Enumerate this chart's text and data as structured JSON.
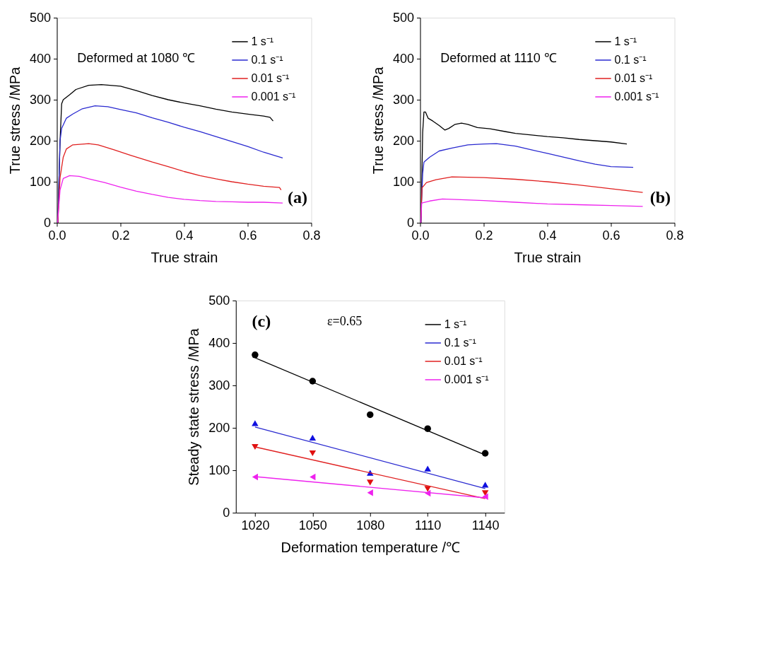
{
  "chart_data": [
    {
      "type": "line",
      "xlabel": "True strain",
      "ylabel": "True stress /MPa",
      "xlim": [
        0,
        0.8
      ],
      "ylim": [
        0,
        500
      ],
      "xticks": [
        {
          "value": 0,
          "label": "0.0"
        },
        0.2,
        0.4,
        0.6,
        0.8
      ],
      "yticks": [
        0,
        100,
        200,
        300,
        400,
        500
      ],
      "grid": false,
      "legend": "top right",
      "annotations": [
        "Deformed at 1080 ℃",
        "(a)"
      ],
      "series": [
        {
          "name": "1 s⁻¹",
          "color": "#000000",
          "x": [
            0.003,
            0.01,
            0.015,
            0.02,
            0.04,
            0.06,
            0.1,
            0.14,
            0.2,
            0.25,
            0.3,
            0.35,
            0.4,
            0.45,
            0.5,
            0.55,
            0.6,
            0.65,
            0.67,
            0.68
          ],
          "values": [
            0,
            200,
            290,
            300,
            312,
            325,
            335,
            337,
            333,
            322,
            310,
            300,
            292,
            285,
            277,
            270,
            265,
            260,
            257,
            248
          ]
        },
        {
          "name": "0.1 s⁻¹",
          "color": "#2a2ad0",
          "x": [
            0.003,
            0.01,
            0.015,
            0.03,
            0.05,
            0.08,
            0.12,
            0.16,
            0.2,
            0.25,
            0.3,
            0.35,
            0.4,
            0.45,
            0.5,
            0.55,
            0.6,
            0.65,
            0.71
          ],
          "values": [
            0,
            200,
            230,
            255,
            265,
            278,
            285,
            283,
            276,
            268,
            256,
            245,
            233,
            222,
            210,
            198,
            186,
            172,
            158
          ]
        },
        {
          "name": "0.01 s⁻¹",
          "color": "#e02020",
          "x": [
            0.003,
            0.01,
            0.02,
            0.03,
            0.05,
            0.1,
            0.13,
            0.18,
            0.23,
            0.3,
            0.35,
            0.4,
            0.45,
            0.5,
            0.55,
            0.6,
            0.65,
            0.7,
            0.705
          ],
          "values": [
            0,
            110,
            160,
            180,
            190,
            193,
            190,
            178,
            165,
            148,
            137,
            125,
            115,
            107,
            100,
            94,
            89,
            86,
            80
          ]
        },
        {
          "name": "0.001 s⁻¹",
          "color": "#ee22ee",
          "x": [
            0.002,
            0.01,
            0.02,
            0.04,
            0.07,
            0.1,
            0.15,
            0.2,
            0.25,
            0.3,
            0.35,
            0.4,
            0.45,
            0.5,
            0.55,
            0.6,
            0.65,
            0.71
          ],
          "values": [
            0,
            80,
            108,
            115,
            113,
            107,
            98,
            87,
            77,
            69,
            62,
            57,
            54,
            52,
            51,
            50,
            50,
            48
          ]
        }
      ]
    },
    {
      "type": "line",
      "xlabel": "True strain",
      "ylabel": "True stress /MPa",
      "xlim": [
        0,
        0.8
      ],
      "ylim": [
        0,
        500
      ],
      "xticks": [
        {
          "value": 0,
          "label": "0.0"
        },
        0.2,
        0.4,
        0.6,
        0.8
      ],
      "yticks": [
        0,
        100,
        200,
        300,
        400,
        500
      ],
      "grid": false,
      "legend": "top right",
      "annotations": [
        "Deformed at 1110 ℃",
        "(b)"
      ],
      "series": [
        {
          "name": "1 s⁻¹",
          "color": "#000000",
          "x": [
            0.003,
            0.008,
            0.012,
            0.017,
            0.025,
            0.04,
            0.06,
            0.078,
            0.09,
            0.11,
            0.13,
            0.15,
            0.18,
            0.22,
            0.27,
            0.3,
            0.35,
            0.4,
            0.45,
            0.5,
            0.55,
            0.6,
            0.65
          ],
          "values": [
            0,
            220,
            270,
            270,
            255,
            248,
            237,
            226,
            230,
            240,
            243,
            240,
            232,
            229,
            222,
            218,
            214,
            210,
            207,
            203,
            200,
            197,
            192
          ]
        },
        {
          "name": "0.1 s⁻¹",
          "color": "#2a2ad0",
          "x": [
            0.002,
            0.008,
            0.012,
            0.03,
            0.06,
            0.1,
            0.15,
            0.2,
            0.24,
            0.3,
            0.35,
            0.4,
            0.45,
            0.5,
            0.55,
            0.6,
            0.67
          ],
          "values": [
            0,
            120,
            148,
            160,
            175,
            182,
            190,
            192,
            193,
            187,
            178,
            169,
            160,
            151,
            143,
            137,
            135
          ]
        },
        {
          "name": "0.01 s⁻¹",
          "color": "#e02020",
          "x": [
            0.002,
            0.006,
            0.02,
            0.05,
            0.1,
            0.15,
            0.2,
            0.3,
            0.4,
            0.5,
            0.6,
            0.7
          ],
          "values": [
            0,
            85,
            98,
            105,
            112,
            111,
            110,
            106,
            100,
            92,
            83,
            74
          ]
        },
        {
          "name": "0.001 s⁻¹",
          "color": "#ee22ee",
          "x": [
            0.002,
            0.005,
            0.03,
            0.07,
            0.1,
            0.2,
            0.3,
            0.4,
            0.5,
            0.6,
            0.7
          ],
          "values": [
            0,
            48,
            53,
            58,
            57,
            54,
            50,
            46,
            44,
            42,
            40
          ]
        }
      ]
    },
    {
      "type": "line",
      "xlabel": "Deformation temperature /℃",
      "ylabel": "Steady state stress /MPa",
      "xlim": [
        1010,
        1150
      ],
      "ylim": [
        0,
        500
      ],
      "xticks": [
        1020,
        1050,
        1080,
        1110,
        1140
      ],
      "yticks": [
        0,
        100,
        200,
        300,
        400,
        500
      ],
      "grid": false,
      "legend": "top right",
      "annotations": [
        "(c)",
        "ε=0.65"
      ],
      "series": [
        {
          "type": "scatter",
          "marker": "circle",
          "color": "#000000",
          "x": [
            1020,
            1050,
            1080,
            1110,
            1140
          ],
          "values": [
            372,
            310,
            231,
            198,
            140
          ]
        },
        {
          "type": "scatter",
          "marker": "triangle-up",
          "color": "#1010e0",
          "x": [
            1020,
            1050,
            1080,
            1110,
            1140
          ],
          "values": [
            211,
            177,
            94,
            104,
            66
          ]
        },
        {
          "type": "scatter",
          "marker": "triangle-down",
          "color": "#e01010",
          "x": [
            1020,
            1050,
            1080,
            1110,
            1140
          ],
          "values": [
            155,
            140,
            71,
            56,
            46
          ]
        },
        {
          "type": "scatter",
          "marker": "triangle-left",
          "color": "#ee22ee",
          "x": [
            1020,
            1050,
            1080,
            1110,
            1140
          ],
          "values": [
            84,
            84,
            47,
            46,
            38
          ]
        },
        {
          "name": "1 s⁻¹",
          "color": "#000000",
          "x": [
            1020,
            1140
          ],
          "values": [
            365,
            136
          ]
        },
        {
          "name": "0.1 s⁻¹",
          "color": "#2a2ad0",
          "x": [
            1020,
            1140
          ],
          "values": [
            202,
            57
          ]
        },
        {
          "name": "0.01 s⁻¹",
          "color": "#e02020",
          "x": [
            1020,
            1140
          ],
          "values": [
            155,
            33
          ]
        },
        {
          "name": "0.001 s⁻¹",
          "color": "#ee22ee",
          "x": [
            1020,
            1140
          ],
          "values": [
            85,
            35
          ]
        }
      ]
    }
  ]
}
